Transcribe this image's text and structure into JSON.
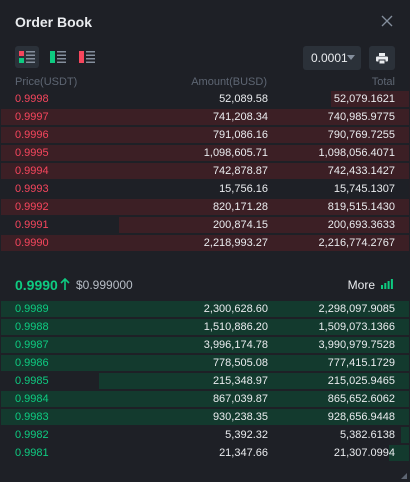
{
  "title": "Order Book",
  "icons": {
    "close": "close-icon",
    "view_both": "orderbook-both-icon",
    "view_bids": "orderbook-bids-icon",
    "view_asks": "orderbook-asks-icon",
    "settings": "printer-icon"
  },
  "precision": {
    "selected": "0.0001"
  },
  "columns": {
    "price": "Price(USDT)",
    "amount": "Amount(BUSD)",
    "total": "Total"
  },
  "asks": [
    {
      "price": "0.9998",
      "amount": "52,089.58",
      "total": "52,079.1621",
      "depth": 0.19
    },
    {
      "price": "0.9997",
      "amount": "741,208.34",
      "total": "740,985.9775",
      "depth": 1.0
    },
    {
      "price": "0.9996",
      "amount": "791,086.16",
      "total": "790,769.7255",
      "depth": 1.0
    },
    {
      "price": "0.9995",
      "amount": "1,098,605.71",
      "total": "1,098,056.4071",
      "depth": 1.0
    },
    {
      "price": "0.9994",
      "amount": "742,878.87",
      "total": "742,433.1427",
      "depth": 1.0
    },
    {
      "price": "0.9993",
      "amount": "15,756.16",
      "total": "15,745.1307",
      "depth": 0.0
    },
    {
      "price": "0.9992",
      "amount": "820,171.28",
      "total": "819,515.1430",
      "depth": 1.0
    },
    {
      "price": "0.9991",
      "amount": "200,874.15",
      "total": "200,693.3633",
      "depth": 0.71
    },
    {
      "price": "0.9990",
      "amount": "2,218,993.27",
      "total": "2,216,774.2767",
      "depth": 1.0
    }
  ],
  "mid": {
    "last_price": "0.9990",
    "mark_price": "$0.999000",
    "more_label": "More"
  },
  "bids": [
    {
      "price": "0.9989",
      "amount": "2,300,628.60",
      "total": "2,298,097.9085",
      "depth": 1.0
    },
    {
      "price": "0.9988",
      "amount": "1,510,886.20",
      "total": "1,509,073.1366",
      "depth": 1.0
    },
    {
      "price": "0.9987",
      "amount": "3,996,174.78",
      "total": "3,990,979.7528",
      "depth": 1.0
    },
    {
      "price": "0.9986",
      "amount": "778,505.08",
      "total": "777,415.1729",
      "depth": 1.0
    },
    {
      "price": "0.9985",
      "amount": "215,348.97",
      "total": "215,025.9465",
      "depth": 0.76
    },
    {
      "price": "0.9984",
      "amount": "867,039.87",
      "total": "865,652.6062",
      "depth": 1.0
    },
    {
      "price": "0.9983",
      "amount": "930,238.35",
      "total": "928,656.9448",
      "depth": 1.0
    },
    {
      "price": "0.9982",
      "amount": "5,392.32",
      "total": "5,382.6138",
      "depth": 0.02
    },
    {
      "price": "0.9981",
      "amount": "21,347.66",
      "total": "21,307.0994",
      "depth": 0.05
    }
  ],
  "colors": {
    "ask": "#f6465d",
    "bid": "#0ecb81",
    "ask_bar": "#3c1f25",
    "bid_bar": "#133a2e"
  }
}
